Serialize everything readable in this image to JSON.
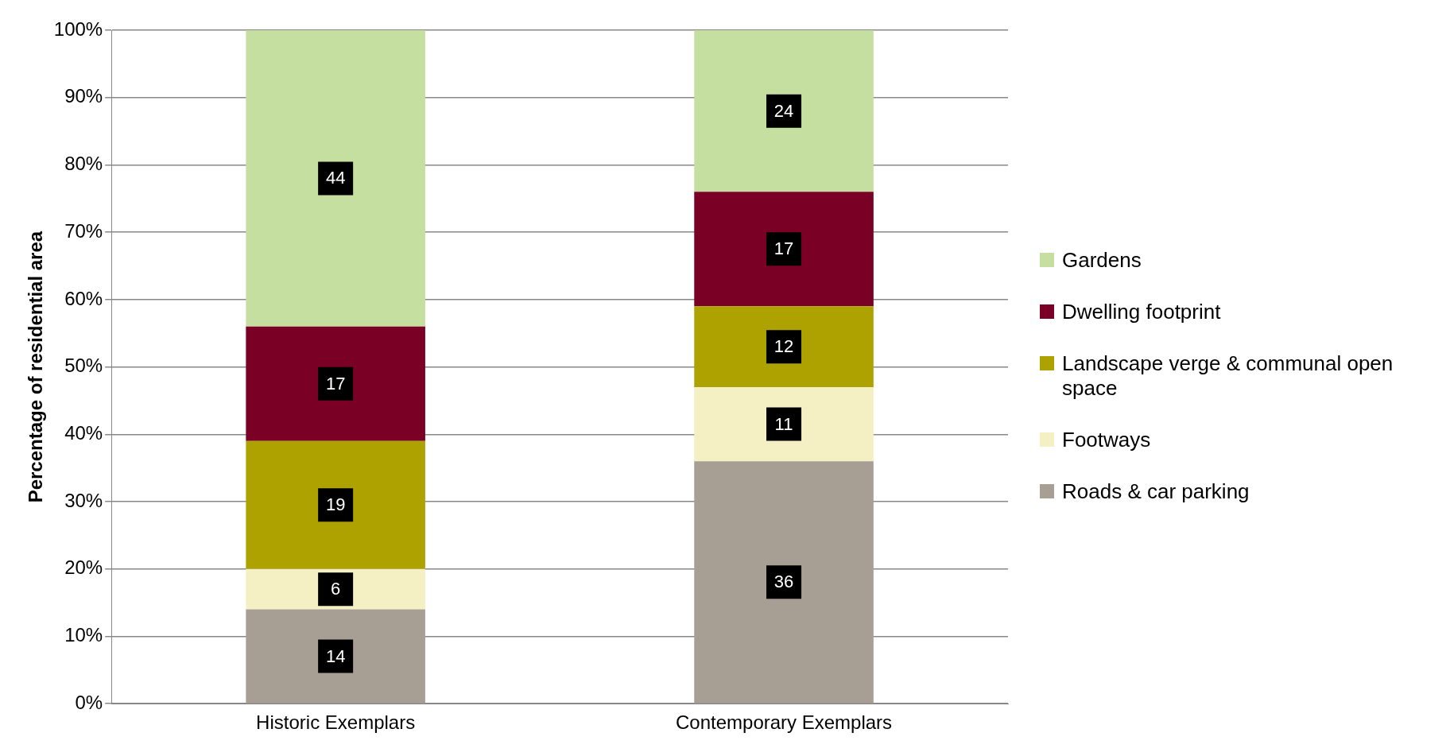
{
  "chart_data": {
    "type": "bar",
    "stacked": true,
    "ylabel": "Percentage of residential area",
    "categories": [
      "Historic Exemplars",
      "Contemporary Exemplars"
    ],
    "series": [
      {
        "name": "Roads & car parking",
        "color": "#a79e94",
        "values": [
          14,
          36
        ]
      },
      {
        "name": "Footways",
        "color": "#f4f0c4",
        "values": [
          6,
          11
        ]
      },
      {
        "name": "Landscape verge & communal open space",
        "color": "#aea200",
        "values": [
          19,
          12
        ]
      },
      {
        "name": "Dwelling footprint",
        "color": "#7a0026",
        "values": [
          17,
          17
        ]
      },
      {
        "name": "Gardens",
        "color": "#c4dfa0",
        "values": [
          44,
          24
        ]
      }
    ],
    "ylim": [
      0,
      100
    ],
    "yticks": [
      {
        "value": 0,
        "label": "0%"
      },
      {
        "value": 10,
        "label": "10%"
      },
      {
        "value": 20,
        "label": "20%"
      },
      {
        "value": 30,
        "label": "30%"
      },
      {
        "value": 40,
        "label": "40%"
      },
      {
        "value": 50,
        "label": "50%"
      },
      {
        "value": 60,
        "label": "60%"
      },
      {
        "value": 70,
        "label": "70%"
      },
      {
        "value": 80,
        "label": "80%"
      },
      {
        "value": 90,
        "label": "90%"
      },
      {
        "value": 100,
        "label": "100%"
      }
    ],
    "grid": "y",
    "legend": "right",
    "data_labels": true
  }
}
